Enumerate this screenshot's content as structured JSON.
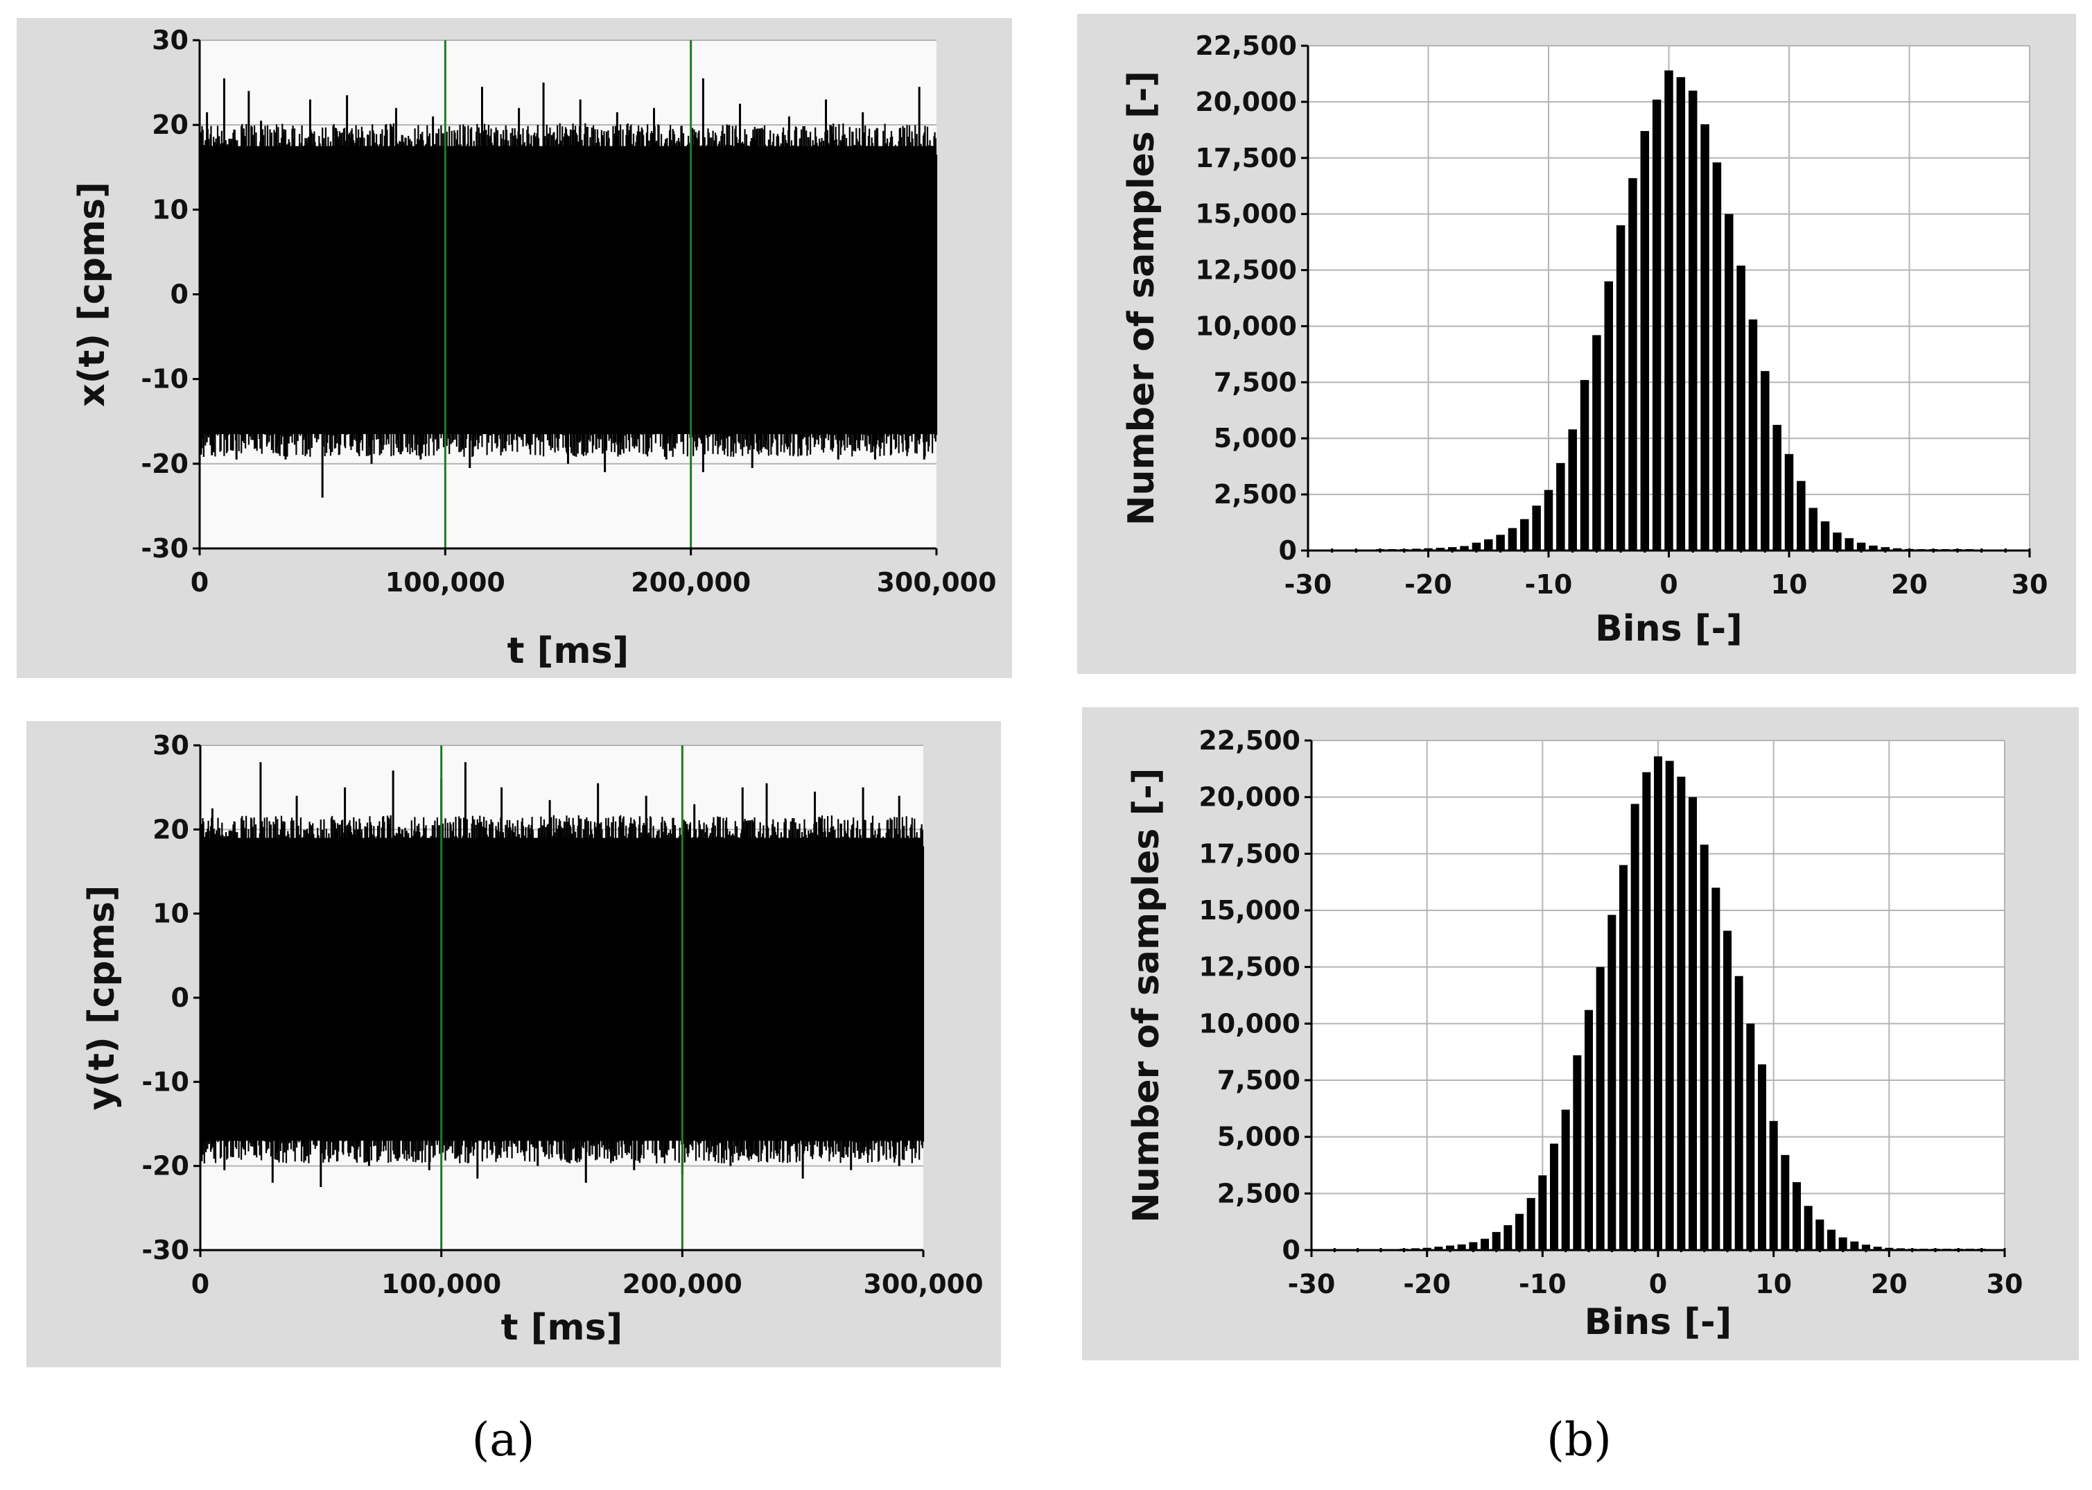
{
  "figure": {
    "label_a": "(a)",
    "label_b": "(b)"
  },
  "chart_data": [
    {
      "id": "x-time-series",
      "type": "line",
      "xlabel": "t [ms]",
      "ylabel": "x(t) [cpms]",
      "xlim": [
        0,
        300000
      ],
      "ylim": [
        -30,
        30
      ],
      "xticks": [
        0,
        100000,
        200000,
        300000
      ],
      "xtick_labels": [
        "0",
        "100,000",
        "200,000",
        "300,000"
      ],
      "yticks": [
        30,
        20,
        10,
        0,
        -10,
        -20,
        -30
      ],
      "ytick_labels": [
        "30",
        "20",
        "10",
        "0",
        "-10",
        "-20",
        "-30"
      ],
      "grid": true,
      "cursors_x": [
        100000,
        200000
      ],
      "cursor_color": "#1e7b1e",
      "band": {
        "lower": -15,
        "upper": 16
      },
      "peaks_max": [
        [
          3000,
          21.5
        ],
        [
          10000,
          25.5
        ],
        [
          20000,
          24
        ],
        [
          25000,
          20.5
        ],
        [
          45000,
          23
        ],
        [
          60000,
          23.5
        ],
        [
          80000,
          22
        ],
        [
          95000,
          21
        ],
        [
          115000,
          24.5
        ],
        [
          130000,
          22
        ],
        [
          140000,
          25
        ],
        [
          155000,
          23
        ],
        [
          170000,
          21.5
        ],
        [
          185000,
          22
        ],
        [
          205000,
          25.5
        ],
        [
          220000,
          22.5
        ],
        [
          240000,
          21
        ],
        [
          255000,
          23
        ],
        [
          270000,
          21.5
        ],
        [
          293000,
          24.5
        ]
      ],
      "peaks_min": [
        [
          5000,
          -19
        ],
        [
          15000,
          -19.5
        ],
        [
          35000,
          -19.5
        ],
        [
          50000,
          -24
        ],
        [
          70000,
          -20
        ],
        [
          90000,
          -19.5
        ],
        [
          110000,
          -20.5
        ],
        [
          130000,
          -14.5
        ],
        [
          150000,
          -20
        ],
        [
          165000,
          -21
        ],
        [
          190000,
          -19.5
        ],
        [
          205000,
          -21
        ],
        [
          225000,
          -20.5
        ],
        [
          245000,
          -19
        ],
        [
          260000,
          -19.5
        ],
        [
          275000,
          -19.5
        ],
        [
          295000,
          -19.5
        ]
      ]
    },
    {
      "id": "x-histogram",
      "type": "bar",
      "xlabel": "Bins [-]",
      "ylabel": "Number of samples [-]",
      "xlim": [
        -30,
        30
      ],
      "ylim": [
        0,
        22500
      ],
      "xticks": [
        -30,
        -20,
        -10,
        0,
        10,
        20,
        30
      ],
      "xtick_labels": [
        "-30",
        "-20",
        "-10",
        "0",
        "10",
        "20",
        "30"
      ],
      "yticks": [
        0,
        2500,
        5000,
        7500,
        10000,
        12500,
        15000,
        17500,
        20000,
        22500
      ],
      "ytick_labels": [
        "0",
        "2,500",
        "5,000",
        "7,500",
        "10,000",
        "12,500",
        "15,000",
        "17,500",
        "20,000",
        "22,500"
      ],
      "grid": true,
      "x": [
        -24,
        -23,
        -22,
        -21,
        -20,
        -19,
        -18,
        -17,
        -16,
        -15,
        -14,
        -13,
        -12,
        -11,
        -10,
        -9,
        -8,
        -7,
        -6,
        -5,
        -4,
        -3,
        -2,
        -1,
        0,
        1,
        2,
        3,
        4,
        5,
        6,
        7,
        8,
        9,
        10,
        11,
        12,
        13,
        14,
        15,
        16,
        17,
        18,
        19,
        20,
        21,
        22,
        23,
        24,
        25
      ],
      "values": [
        30,
        40,
        60,
        80,
        100,
        120,
        150,
        200,
        350,
        500,
        700,
        1000,
        1400,
        2000,
        2700,
        3900,
        5400,
        7600,
        9600,
        12000,
        14500,
        16600,
        18700,
        20100,
        21400,
        21100,
        20500,
        19000,
        17300,
        15000,
        12700,
        10300,
        8000,
        5600,
        4300,
        3100,
        1900,
        1300,
        800,
        550,
        350,
        220,
        150,
        100,
        70,
        50,
        40,
        30,
        20,
        15
      ]
    },
    {
      "id": "y-time-series",
      "type": "line",
      "xlabel": "t [ms]",
      "ylabel": "y(t) [cpms]",
      "xlim": [
        0,
        300000
      ],
      "ylim": [
        -30,
        30
      ],
      "xticks": [
        0,
        100000,
        200000,
        300000
      ],
      "xtick_labels": [
        "0",
        "100,000",
        "200,000",
        "300,000"
      ],
      "yticks": [
        30,
        20,
        10,
        0,
        -10,
        -20,
        -30
      ],
      "ytick_labels": [
        "30",
        "20",
        "10",
        "0",
        "-10",
        "-20",
        "-30"
      ],
      "grid": true,
      "cursors_x": [
        100000,
        200000
      ],
      "cursor_color": "#1e7b1e",
      "band": {
        "lower": -15.5,
        "upper": 17.5
      },
      "peaks_max": [
        [
          5000,
          22.5
        ],
        [
          25000,
          28
        ],
        [
          40000,
          24
        ],
        [
          60000,
          25
        ],
        [
          80000,
          27
        ],
        [
          100000,
          26
        ],
        [
          110000,
          28
        ],
        [
          125000,
          25
        ],
        [
          145000,
          23.5
        ],
        [
          165000,
          25.5
        ],
        [
          185000,
          24
        ],
        [
          205000,
          23
        ],
        [
          225000,
          25
        ],
        [
          235000,
          25.5
        ],
        [
          255000,
          24.5
        ],
        [
          275000,
          25
        ],
        [
          290000,
          24
        ]
      ],
      "peaks_min": [
        [
          10000,
          -20.5
        ],
        [
          30000,
          -22
        ],
        [
          50000,
          -22.5
        ],
        [
          70000,
          -20
        ],
        [
          95000,
          -20.5
        ],
        [
          115000,
          -21.5
        ],
        [
          140000,
          -20
        ],
        [
          160000,
          -22
        ],
        [
          180000,
          -20.5
        ],
        [
          200000,
          -21
        ],
        [
          220000,
          -20
        ],
        [
          250000,
          -21.5
        ],
        [
          270000,
          -20.5
        ],
        [
          290000,
          -20
        ]
      ]
    },
    {
      "id": "y-histogram",
      "type": "bar",
      "xlabel": "Bins [-]",
      "ylabel": "Number of samples [-]",
      "xlim": [
        -30,
        30
      ],
      "ylim": [
        0,
        22500
      ],
      "xticks": [
        -30,
        -20,
        -10,
        0,
        10,
        20,
        30
      ],
      "xtick_labels": [
        "-30",
        "-20",
        "-10",
        "0",
        "10",
        "20",
        "30"
      ],
      "yticks": [
        0,
        2500,
        5000,
        7500,
        10000,
        12500,
        15000,
        17500,
        20000,
        22500
      ],
      "ytick_labels": [
        "0",
        "2,500",
        "5,000",
        "7,500",
        "10,000",
        "12,500",
        "15,000",
        "17,500",
        "20,000",
        "22,500"
      ],
      "grid": true,
      "x": [
        -22,
        -21,
        -20,
        -19,
        -18,
        -17,
        -16,
        -15,
        -14,
        -13,
        -12,
        -11,
        -10,
        -9,
        -8,
        -7,
        -6,
        -5,
        -4,
        -3,
        -2,
        -1,
        0,
        1,
        2,
        3,
        4,
        5,
        6,
        7,
        8,
        9,
        10,
        11,
        12,
        13,
        14,
        15,
        16,
        17,
        18,
        19,
        20,
        21,
        22,
        23,
        24,
        25,
        26,
        27,
        28
      ],
      "values": [
        60,
        80,
        100,
        150,
        200,
        250,
        350,
        500,
        800,
        1100,
        1600,
        2300,
        3300,
        4700,
        6200,
        8600,
        10600,
        12500,
        14800,
        17000,
        19700,
        21100,
        21800,
        21600,
        20900,
        20000,
        17900,
        16000,
        14100,
        12100,
        10000,
        8200,
        5700,
        4200,
        3000,
        1950,
        1350,
        900,
        560,
        380,
        240,
        150,
        100,
        80,
        60,
        50,
        40,
        30,
        25,
        20,
        15
      ]
    }
  ]
}
